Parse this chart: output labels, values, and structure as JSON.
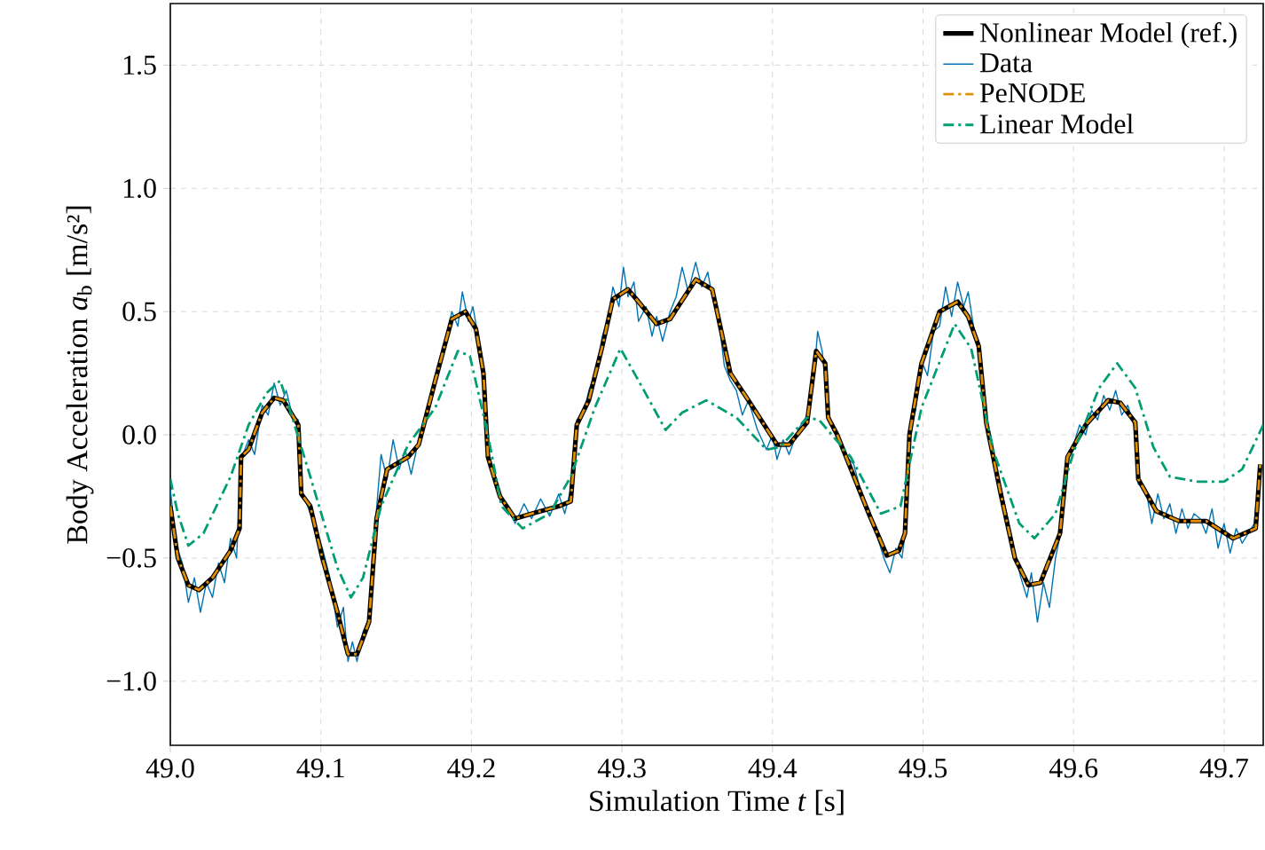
{
  "chart_data": {
    "type": "line",
    "xlabel": "Simulation Time *t* [s]",
    "ylabel": "Body Acceleration *a*$_{b}$ [m/s²]",
    "xlim": [
      49.0,
      49.726
    ],
    "ylim": [
      -1.26,
      1.75
    ],
    "xticks": [
      {
        "value": 49.0,
        "label": "49.0"
      },
      {
        "value": 49.1,
        "label": "49.1"
      },
      {
        "value": 49.2,
        "label": "49.2"
      },
      {
        "value": 49.3,
        "label": "49.3"
      },
      {
        "value": 49.4,
        "label": "49.4"
      },
      {
        "value": 49.5,
        "label": "49.5"
      },
      {
        "value": 49.6,
        "label": "49.6"
      },
      {
        "value": 49.7,
        "label": "49.7"
      }
    ],
    "yticks": [
      {
        "value": -1.0,
        "label": "−1.0"
      },
      {
        "value": -0.5,
        "label": "−0.5"
      },
      {
        "value": 0.0,
        "label": "0.0"
      },
      {
        "value": 0.5,
        "label": "0.5"
      },
      {
        "value": 1.0,
        "label": "1.0"
      },
      {
        "value": 1.5,
        "label": "1.5"
      }
    ],
    "grid": true,
    "legend": "top right",
    "marker": "none",
    "series": [
      {
        "name": "Nonlinear Model (ref.)",
        "color": "#000000",
        "line_style": "solid",
        "x": [
          49.0,
          49.005,
          49.012,
          49.019,
          49.028,
          49.04,
          49.046,
          49.047,
          49.052,
          49.061,
          49.069,
          49.075,
          49.085,
          49.087,
          49.093,
          49.101,
          49.111,
          49.118,
          49.124,
          49.132,
          49.137,
          49.144,
          49.158,
          49.165,
          49.176,
          49.187,
          49.196,
          49.203,
          49.208,
          49.211,
          49.219,
          49.229,
          49.24,
          49.258,
          49.266,
          49.27,
          49.278,
          49.287,
          49.294,
          49.304,
          49.311,
          49.323,
          49.332,
          49.349,
          49.36,
          49.372,
          49.384,
          49.403,
          49.411,
          49.423,
          49.429,
          49.435,
          49.437,
          49.443,
          49.464,
          49.476,
          49.484,
          49.488,
          49.491,
          49.499,
          49.511,
          49.523,
          49.53,
          49.537,
          49.542,
          49.552,
          49.561,
          49.57,
          49.578,
          49.591,
          49.596,
          49.608,
          49.623,
          49.631,
          49.641,
          49.643,
          49.655,
          49.67,
          49.688,
          49.706,
          49.721,
          49.724
        ],
        "values": [
          -0.29,
          -0.5,
          -0.61,
          -0.63,
          -0.58,
          -0.47,
          -0.38,
          -0.09,
          -0.06,
          0.09,
          0.15,
          0.14,
          0.04,
          -0.24,
          -0.29,
          -0.5,
          -0.72,
          -0.89,
          -0.89,
          -0.76,
          -0.34,
          -0.14,
          -0.09,
          -0.04,
          0.22,
          0.47,
          0.5,
          0.43,
          0.25,
          -0.09,
          -0.25,
          -0.34,
          -0.32,
          -0.29,
          -0.27,
          0.04,
          0.14,
          0.36,
          0.55,
          0.59,
          0.54,
          0.45,
          0.47,
          0.63,
          0.59,
          0.25,
          0.14,
          -0.04,
          -0.04,
          0.05,
          0.34,
          0.29,
          0.07,
          0.0,
          -0.32,
          -0.49,
          -0.47,
          -0.4,
          0.0,
          0.29,
          0.5,
          0.54,
          0.48,
          0.36,
          0.05,
          -0.25,
          -0.5,
          -0.61,
          -0.6,
          -0.4,
          -0.09,
          0.04,
          0.14,
          0.13,
          0.05,
          -0.18,
          -0.31,
          -0.35,
          -0.35,
          -0.42,
          -0.38,
          -0.12
        ]
      },
      {
        "name": "Data",
        "color": "#0173b2",
        "line_style": "solid",
        "x": [
          49.0,
          49.004,
          49.008,
          49.012,
          49.016,
          49.02,
          49.024,
          49.028,
          49.032,
          49.036,
          49.04,
          49.044,
          49.047,
          49.052,
          49.056,
          49.061,
          49.065,
          49.069,
          49.073,
          49.077,
          49.081,
          49.085,
          49.087,
          49.093,
          49.101,
          49.106,
          49.111,
          49.115,
          49.118,
          49.121,
          49.124,
          49.128,
          49.132,
          49.137,
          49.14,
          49.144,
          49.148,
          49.152,
          49.156,
          49.16,
          49.165,
          49.17,
          49.176,
          49.181,
          49.187,
          49.191,
          49.194,
          49.198,
          49.201,
          49.205,
          49.208,
          49.211,
          49.219,
          49.225,
          49.229,
          49.235,
          49.24,
          49.246,
          49.252,
          49.258,
          49.262,
          49.266,
          49.27,
          49.275,
          49.278,
          49.283,
          49.287,
          49.291,
          49.294,
          49.298,
          49.301,
          49.304,
          49.308,
          49.311,
          49.316,
          49.32,
          49.323,
          49.327,
          49.332,
          49.336,
          49.34,
          49.344,
          49.349,
          49.353,
          49.357,
          49.36,
          49.364,
          49.368,
          49.372,
          49.376,
          49.38,
          49.384,
          49.39,
          49.396,
          49.4,
          49.403,
          49.407,
          49.411,
          49.417,
          49.423,
          49.427,
          49.43,
          49.433,
          49.437,
          49.44,
          49.443,
          49.448,
          49.454,
          49.46,
          49.464,
          49.47,
          49.474,
          49.478,
          49.482,
          49.486,
          49.489,
          49.491,
          49.495,
          49.499,
          49.503,
          49.507,
          49.511,
          49.515,
          49.519,
          49.523,
          49.527,
          49.53,
          49.534,
          49.537,
          49.542,
          49.547,
          49.552,
          49.557,
          49.561,
          49.565,
          49.569,
          49.572,
          49.576,
          49.58,
          49.584,
          49.588,
          49.592,
          49.596,
          49.6,
          49.604,
          49.608,
          49.612,
          49.616,
          49.62,
          49.624,
          49.628,
          49.632,
          49.636,
          49.641,
          49.643,
          49.648,
          49.652,
          49.656,
          49.66,
          49.664,
          49.668,
          49.672,
          49.676,
          49.68,
          49.684,
          49.688,
          49.692,
          49.696,
          49.7,
          49.704,
          49.708,
          49.712,
          49.716,
          49.72,
          49.724
        ],
        "values": [
          -0.22,
          -0.45,
          -0.52,
          -0.68,
          -0.58,
          -0.72,
          -0.6,
          -0.66,
          -0.52,
          -0.6,
          -0.42,
          -0.5,
          -0.1,
          -0.02,
          -0.08,
          0.12,
          0.08,
          0.21,
          0.12,
          0.18,
          0.08,
          0.06,
          -0.22,
          -0.32,
          -0.46,
          -0.58,
          -0.78,
          -0.7,
          -0.92,
          -0.84,
          -0.92,
          -0.8,
          -0.74,
          -0.3,
          -0.08,
          -0.18,
          -0.02,
          -0.14,
          -0.06,
          -0.16,
          -0.02,
          0.08,
          0.24,
          0.32,
          0.5,
          0.44,
          0.58,
          0.46,
          0.52,
          0.38,
          0.24,
          -0.06,
          -0.26,
          -0.3,
          -0.36,
          -0.28,
          -0.34,
          -0.26,
          -0.33,
          -0.24,
          -0.32,
          -0.22,
          0.06,
          0.1,
          0.18,
          0.26,
          0.4,
          0.48,
          0.6,
          0.52,
          0.68,
          0.56,
          0.62,
          0.46,
          0.52,
          0.4,
          0.48,
          0.38,
          0.5,
          0.56,
          0.68,
          0.58,
          0.7,
          0.6,
          0.66,
          0.56,
          0.48,
          0.28,
          0.22,
          0.18,
          0.08,
          0.14,
          0.02,
          -0.06,
          0.0,
          -0.1,
          -0.02,
          -0.08,
          0.02,
          0.08,
          0.2,
          0.42,
          0.34,
          0.1,
          0.02,
          0.0,
          -0.08,
          -0.12,
          -0.26,
          -0.3,
          -0.42,
          -0.5,
          -0.56,
          -0.46,
          -0.5,
          -0.36,
          0.02,
          0.1,
          0.3,
          0.24,
          0.42,
          0.44,
          0.6,
          0.48,
          0.62,
          0.52,
          0.58,
          0.42,
          0.38,
          0.04,
          -0.12,
          -0.22,
          -0.36,
          -0.48,
          -0.58,
          -0.66,
          -0.56,
          -0.76,
          -0.6,
          -0.7,
          -0.5,
          -0.38,
          -0.1,
          -0.04,
          0.04,
          0.0,
          0.1,
          0.06,
          0.16,
          0.1,
          0.18,
          0.08,
          0.12,
          0.02,
          -0.2,
          -0.22,
          -0.36,
          -0.24,
          -0.34,
          -0.28,
          -0.4,
          -0.3,
          -0.38,
          -0.32,
          -0.34,
          -0.4,
          -0.3,
          -0.46,
          -0.36,
          -0.48,
          -0.38,
          -0.44,
          -0.4,
          -0.36,
          -0.12
        ]
      },
      {
        "name": "PeNODE",
        "color": "#de8f05",
        "line_style": "dashdot",
        "x": [
          49.0,
          49.005,
          49.012,
          49.019,
          49.028,
          49.04,
          49.046,
          49.047,
          49.052,
          49.061,
          49.069,
          49.075,
          49.085,
          49.087,
          49.093,
          49.101,
          49.111,
          49.118,
          49.124,
          49.132,
          49.137,
          49.144,
          49.158,
          49.165,
          49.176,
          49.187,
          49.196,
          49.203,
          49.208,
          49.211,
          49.219,
          49.229,
          49.24,
          49.258,
          49.266,
          49.27,
          49.278,
          49.287,
          49.294,
          49.304,
          49.311,
          49.323,
          49.332,
          49.349,
          49.36,
          49.372,
          49.384,
          49.403,
          49.411,
          49.423,
          49.429,
          49.435,
          49.437,
          49.443,
          49.464,
          49.476,
          49.484,
          49.488,
          49.491,
          49.499,
          49.511,
          49.523,
          49.53,
          49.537,
          49.542,
          49.552,
          49.561,
          49.57,
          49.578,
          49.591,
          49.596,
          49.608,
          49.623,
          49.631,
          49.641,
          49.643,
          49.655,
          49.67,
          49.688,
          49.706,
          49.721,
          49.724
        ],
        "values": [
          -0.29,
          -0.5,
          -0.61,
          -0.63,
          -0.58,
          -0.47,
          -0.38,
          -0.09,
          -0.06,
          0.09,
          0.15,
          0.14,
          0.04,
          -0.24,
          -0.29,
          -0.5,
          -0.72,
          -0.89,
          -0.89,
          -0.76,
          -0.34,
          -0.14,
          -0.09,
          -0.04,
          0.22,
          0.47,
          0.5,
          0.43,
          0.25,
          -0.09,
          -0.25,
          -0.34,
          -0.32,
          -0.29,
          -0.27,
          0.04,
          0.14,
          0.36,
          0.55,
          0.59,
          0.54,
          0.45,
          0.47,
          0.63,
          0.59,
          0.25,
          0.14,
          -0.04,
          -0.04,
          0.05,
          0.34,
          0.29,
          0.07,
          0.0,
          -0.32,
          -0.49,
          -0.47,
          -0.4,
          0.0,
          0.29,
          0.5,
          0.54,
          0.48,
          0.36,
          0.05,
          -0.25,
          -0.5,
          -0.61,
          -0.6,
          -0.4,
          -0.09,
          0.04,
          0.14,
          0.13,
          0.05,
          -0.18,
          -0.31,
          -0.35,
          -0.35,
          -0.42,
          -0.38,
          -0.12
        ]
      },
      {
        "name": "Linear Model",
        "color": "#029e73",
        "line_style": "dashdot",
        "x": [
          49.0,
          49.005,
          49.012,
          49.022,
          49.04,
          49.052,
          49.064,
          49.073,
          49.081,
          49.093,
          49.111,
          49.12,
          49.128,
          49.14,
          49.158,
          49.176,
          49.191,
          49.199,
          49.211,
          49.22,
          49.234,
          49.252,
          49.266,
          49.282,
          49.299,
          49.311,
          49.329,
          49.34,
          49.356,
          49.376,
          49.396,
          49.405,
          49.423,
          49.431,
          49.452,
          49.472,
          49.485,
          49.499,
          49.521,
          49.532,
          49.547,
          49.564,
          49.574,
          49.588,
          49.6,
          49.617,
          49.629,
          49.641,
          49.653,
          49.664,
          49.682,
          49.7,
          49.712,
          49.726
        ],
        "values": [
          -0.18,
          -0.32,
          -0.45,
          -0.4,
          -0.17,
          0.04,
          0.17,
          0.22,
          0.07,
          -0.17,
          -0.54,
          -0.66,
          -0.58,
          -0.29,
          -0.04,
          0.11,
          0.34,
          0.32,
          0.0,
          -0.29,
          -0.38,
          -0.32,
          -0.17,
          0.11,
          0.35,
          0.22,
          0.02,
          0.09,
          0.14,
          0.07,
          -0.06,
          -0.05,
          0.07,
          0.06,
          -0.09,
          -0.32,
          -0.29,
          0.11,
          0.45,
          0.35,
          -0.07,
          -0.36,
          -0.42,
          -0.32,
          -0.07,
          0.19,
          0.29,
          0.19,
          -0.05,
          -0.17,
          -0.19,
          -0.19,
          -0.14,
          0.04
        ]
      }
    ]
  }
}
